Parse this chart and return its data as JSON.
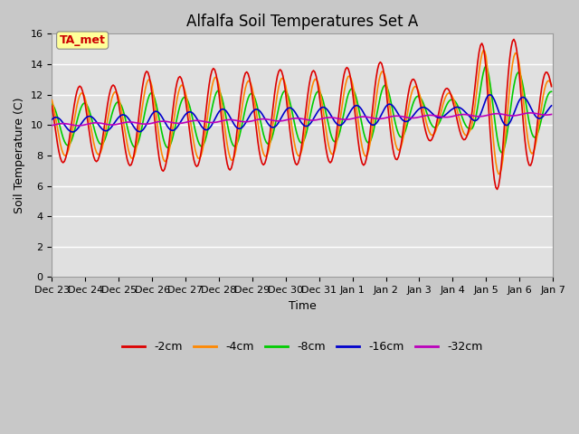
{
  "title": "Alfalfa Soil Temperatures Set A",
  "xlabel": "Time",
  "ylabel": "Soil Temperature (C)",
  "ylim": [
    0,
    16
  ],
  "yticks": [
    0,
    2,
    4,
    6,
    8,
    10,
    12,
    14,
    16
  ],
  "annotation": "TA_met",
  "annotation_color": "#cc0000",
  "annotation_bg": "#ffff99",
  "fig_bg": "#c8c8c8",
  "plot_bg": "#e0e0e0",
  "grid_color": "#ffffff",
  "colors": {
    "-2cm": "#dd0000",
    "-4cm": "#ff8800",
    "-8cm": "#00cc00",
    "-16cm": "#0000cc",
    "-32cm": "#bb00bb"
  },
  "legend_labels": [
    "-2cm",
    "-4cm",
    "-8cm",
    "-16cm",
    "-32cm"
  ],
  "x_tick_labels": [
    "Dec 23",
    "Dec 24",
    "Dec 25",
    "Dec 26",
    "Dec 27",
    "Dec 28",
    "Dec 29",
    "Dec 30",
    "Dec 31",
    "Jan 1",
    "Jan 2",
    "Jan 3",
    "Jan 4",
    "Jan 5",
    "Jan 6",
    "Jan 7"
  ],
  "title_fontsize": 12,
  "axis_fontsize": 9,
  "tick_fontsize": 8,
  "legend_fontsize": 9
}
